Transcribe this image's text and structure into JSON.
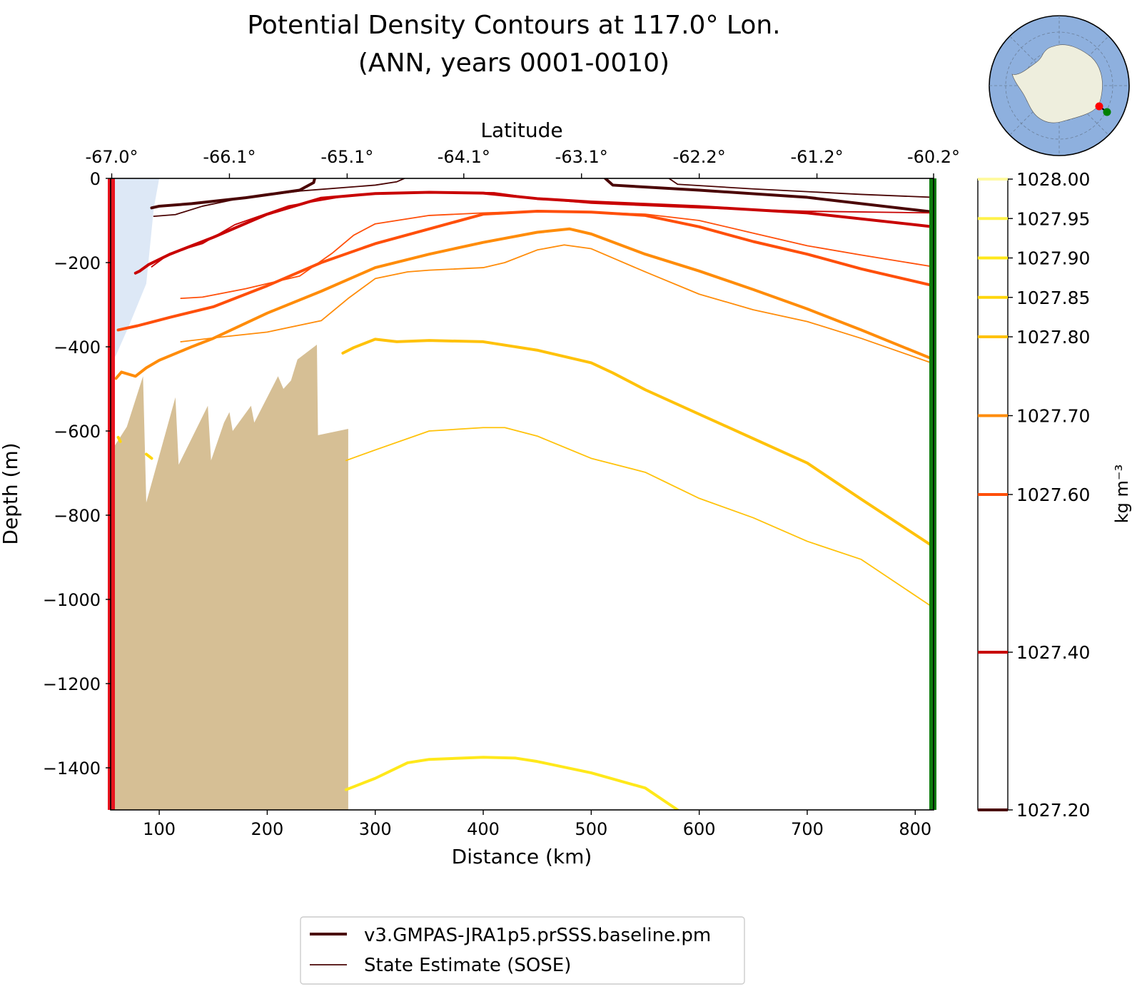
{
  "chart_data": {
    "type": "line",
    "title": "Potential Density Contours at 117.0° Lon.",
    "subtitle": "(ANN, years 0001-0010)",
    "xlabel": "Distance (km)",
    "ylabel": "Depth (m)",
    "top_xlabel": "Latitude",
    "xlim": [
      55,
      817
    ],
    "ylim": [
      -1500,
      0
    ],
    "x_ticks": [
      100,
      200,
      300,
      400,
      500,
      600,
      700,
      800
    ],
    "x_tick_labels": [
      "100",
      "200",
      "300",
      "400",
      "500",
      "600",
      "700",
      "800"
    ],
    "y_ticks": [
      0,
      -200,
      -400,
      -600,
      -800,
      -1000,
      -1200,
      -1400
    ],
    "y_tick_labels": [
      "0",
      "−200",
      "−400",
      "−600",
      "−800",
      "−1000",
      "−1200",
      "−1400"
    ],
    "lat_tick_positions_km": [
      56,
      165,
      274,
      382,
      491,
      600,
      709,
      817
    ],
    "lat_tick_labels": [
      "-67.0°",
      "-66.1°",
      "-65.1°",
      "-64.1°",
      "-63.1°",
      "-62.2°",
      "-61.2°",
      "-60.2°"
    ],
    "colorbar": {
      "label": "kg m⁻³",
      "levels": [
        1027.2,
        1027.4,
        1027.6,
        1027.7,
        1027.8,
        1027.85,
        1027.9,
        1027.95,
        1028.0
      ],
      "tick_labels": [
        "1027.20",
        "1027.40",
        "1027.60",
        "1027.70",
        "1027.80",
        "1027.85",
        "1027.90",
        "1027.95",
        "1028.00"
      ],
      "colors": [
        "#4a0404",
        "#c80000",
        "#ff4f0a",
        "#ff8c0a",
        "#ffc20a",
        "#ffd60a",
        "#ffe81a",
        "#fff24a",
        "#fffaa0"
      ]
    },
    "legend": {
      "placement": "bottom-center",
      "entries": [
        {
          "label": "v3.GMPAS-JRA1p5.prSSS.baseline.pm",
          "style": "thick"
        },
        {
          "label": "State Estimate (SOSE)",
          "style": "thin"
        }
      ]
    },
    "series": [
      {
        "level": 1027.2,
        "source": "model",
        "segments": [
          [
            [
              93,
              -70
            ],
            [
              100,
              -66
            ],
            [
              130,
              -60
            ],
            [
              180,
              -46
            ],
            [
              230,
              -28
            ],
            [
              243,
              -10
            ],
            [
              244,
              0
            ]
          ],
          [
            [
              513,
              0
            ],
            [
              520,
              -16
            ],
            [
              600,
              -28
            ],
            [
              700,
              -45
            ],
            [
              817,
              -80
            ]
          ]
        ]
      },
      {
        "level": 1027.2,
        "source": "sose",
        "segments": [
          [
            [
              95,
              -90
            ],
            [
              115,
              -86
            ],
            [
              140,
              -66
            ],
            [
              170,
              -50
            ],
            [
              230,
              -30
            ],
            [
              300,
              -16
            ],
            [
              320,
              -8
            ],
            [
              327,
              0
            ]
          ],
          [
            [
              572,
              0
            ],
            [
              580,
              -14
            ],
            [
              650,
              -25
            ],
            [
              750,
              -38
            ],
            [
              817,
              -45
            ]
          ]
        ]
      },
      {
        "level": 1027.4,
        "source": "model",
        "segments": [
          [
            [
              78,
              -225
            ],
            [
              82,
              -220
            ],
            [
              90,
              -205
            ],
            [
              110,
              -180
            ],
            [
              150,
              -140
            ],
            [
              200,
              -85
            ],
            [
              250,
              -47
            ],
            [
              300,
              -36
            ],
            [
              350,
              -33
            ],
            [
              400,
              -35
            ],
            [
              450,
              -48
            ],
            [
              500,
              -56
            ],
            [
              600,
              -67
            ],
            [
              700,
              -82
            ],
            [
              817,
              -115
            ]
          ]
        ]
      },
      {
        "level": 1027.4,
        "source": "sose",
        "segments": [
          [
            [
              93,
              -210
            ],
            [
              110,
              -178
            ],
            [
              140,
              -155
            ],
            [
              170,
              -110
            ],
            [
              220,
              -65
            ],
            [
              280,
              -39
            ],
            [
              350,
              -32
            ],
            [
              410,
              -34
            ],
            [
              450,
              -48
            ],
            [
              500,
              -59
            ],
            [
              600,
              -70
            ],
            [
              700,
              -78
            ],
            [
              817,
              -82
            ]
          ]
        ]
      },
      {
        "level": 1027.6,
        "source": "model",
        "segments": [
          [
            [
              62,
              -360
            ],
            [
              80,
              -350
            ],
            [
              92,
              -342
            ],
            [
              110,
              -330
            ],
            [
              150,
              -305
            ],
            [
              200,
              -255
            ],
            [
              250,
              -200
            ],
            [
              300,
              -155
            ],
            [
              350,
              -120
            ],
            [
              400,
              -85
            ],
            [
              450,
              -78
            ],
            [
              500,
              -80
            ],
            [
              550,
              -88
            ],
            [
              600,
              -115
            ],
            [
              650,
              -150
            ],
            [
              700,
              -180
            ],
            [
              750,
              -215
            ],
            [
              817,
              -255
            ]
          ]
        ]
      },
      {
        "level": 1027.6,
        "source": "sose",
        "segments": [
          [
            [
              120,
              -285
            ],
            [
              140,
              -282
            ],
            [
              180,
              -262
            ],
            [
              230,
              -232
            ],
            [
              260,
              -178
            ],
            [
              280,
              -135
            ],
            [
              300,
              -108
            ],
            [
              350,
              -88
            ],
            [
              400,
              -82
            ],
            [
              450,
              -78
            ],
            [
              500,
              -80
            ],
            [
              550,
              -85
            ],
            [
              600,
              -100
            ],
            [
              650,
              -130
            ],
            [
              700,
              -160
            ],
            [
              750,
              -182
            ],
            [
              817,
              -210
            ]
          ]
        ]
      },
      {
        "level": 1027.7,
        "source": "model",
        "segments": [
          [
            [
              60,
              -475
            ],
            [
              65,
              -460
            ],
            [
              78,
              -470
            ],
            [
              88,
              -450
            ],
            [
              100,
              -432
            ],
            [
              130,
              -400
            ],
            [
              150,
              -380
            ],
            [
              200,
              -320
            ],
            [
              250,
              -268
            ],
            [
              300,
              -212
            ],
            [
              350,
              -180
            ],
            [
              400,
              -152
            ],
            [
              450,
              -128
            ],
            [
              480,
              -120
            ],
            [
              500,
              -132
            ],
            [
              550,
              -180
            ],
            [
              600,
              -220
            ],
            [
              650,
              -264
            ],
            [
              700,
              -310
            ],
            [
              750,
              -360
            ],
            [
              817,
              -430
            ]
          ]
        ]
      },
      {
        "level": 1027.7,
        "source": "sose",
        "segments": [
          [
            [
              120,
              -388
            ],
            [
              160,
              -376
            ],
            [
              200,
              -365
            ],
            [
              250,
              -338
            ],
            [
              275,
              -285
            ],
            [
              300,
              -238
            ],
            [
              330,
              -222
            ],
            [
              350,
              -218
            ],
            [
              400,
              -212
            ],
            [
              420,
              -200
            ],
            [
              450,
              -170
            ],
            [
              475,
              -158
            ],
            [
              500,
              -167
            ],
            [
              550,
              -222
            ],
            [
              600,
              -275
            ],
            [
              650,
              -312
            ],
            [
              700,
              -340
            ],
            [
              750,
              -380
            ],
            [
              817,
              -440
            ]
          ]
        ]
      },
      {
        "level": 1027.8,
        "source": "model",
        "segments": [
          [
            [
              270,
              -415
            ],
            [
              280,
              -402
            ],
            [
              300,
              -382
            ],
            [
              320,
              -388
            ],
            [
              350,
              -385
            ],
            [
              400,
              -388
            ],
            [
              450,
              -408
            ],
            [
              500,
              -438
            ],
            [
              520,
              -462
            ],
            [
              550,
              -502
            ],
            [
              600,
              -560
            ],
            [
              650,
              -618
            ],
            [
              700,
              -676
            ],
            [
              750,
              -762
            ],
            [
              817,
              -875
            ]
          ]
        ]
      },
      {
        "level": 1027.8,
        "source": "sose",
        "segments": [
          [
            [
              273,
              -670
            ],
            [
              300,
              -645
            ],
            [
              350,
              -600
            ],
            [
              400,
              -592
            ],
            [
              420,
              -592
            ],
            [
              450,
              -612
            ],
            [
              500,
              -665
            ],
            [
              550,
              -698
            ],
            [
              600,
              -760
            ],
            [
              650,
              -806
            ],
            [
              700,
              -862
            ],
            [
              750,
              -905
            ],
            [
              817,
              -1020
            ]
          ]
        ]
      },
      {
        "level": 1027.85,
        "source": "model",
        "segments": [
          [
            [
              62,
              -615
            ],
            [
              64,
              -625
            ]
          ],
          [
            [
              88,
              -655
            ],
            [
              93,
              -665
            ]
          ]
        ]
      },
      {
        "level": 1027.9,
        "source": "model",
        "segments": [
          [
            [
              273,
              -1452
            ],
            [
              300,
              -1425
            ],
            [
              330,
              -1388
            ],
            [
              350,
              -1380
            ],
            [
              400,
              -1375
            ],
            [
              430,
              -1377
            ],
            [
              450,
              -1385
            ],
            [
              500,
              -1412
            ],
            [
              550,
              -1448
            ],
            [
              580,
              -1500
            ]
          ]
        ]
      }
    ]
  },
  "inset_map": {
    "description_label": "",
    "start_marker_color": "#ff0000",
    "end_marker_color": "#008000",
    "ocean_color": "#8eb0de",
    "land_color": "#eeeedd"
  },
  "section_edges": {
    "start_color": "#e8141e",
    "end_color": "#0a7a0a"
  },
  "bathymetry_color": "#d6bf95",
  "ice_shelf_color": "#dde8f6"
}
